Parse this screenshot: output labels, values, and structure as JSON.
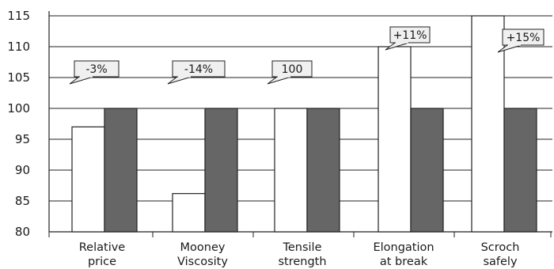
{
  "chart_data": {
    "type": "bar",
    "title": "",
    "xlabel": "",
    "ylabel": "",
    "ylim": [
      80,
      115
    ],
    "yticks": [
      80,
      85,
      90,
      95,
      100,
      105,
      110,
      115
    ],
    "grid": true,
    "categories": [
      [
        "Relative",
        "price"
      ],
      [
        "Mooney",
        "Viscosity"
      ],
      [
        "Tensile",
        "strength"
      ],
      [
        "Elongation",
        "at break"
      ],
      [
        "Scroch",
        "safely"
      ]
    ],
    "series": [
      {
        "values": [
          97,
          86.2,
          100,
          110,
          115
        ],
        "color": "#ffffff"
      },
      {
        "values": [
          100,
          100,
          100,
          100,
          100
        ],
        "color": "#666666"
      }
    ],
    "annotations": [
      {
        "text": "-3%",
        "category": 0
      },
      {
        "text": "-14%",
        "category": 1
      },
      {
        "text": "100",
        "category": 2
      },
      {
        "text": "+11%",
        "category": 3
      },
      {
        "text": "+15%",
        "category": 4
      }
    ]
  }
}
